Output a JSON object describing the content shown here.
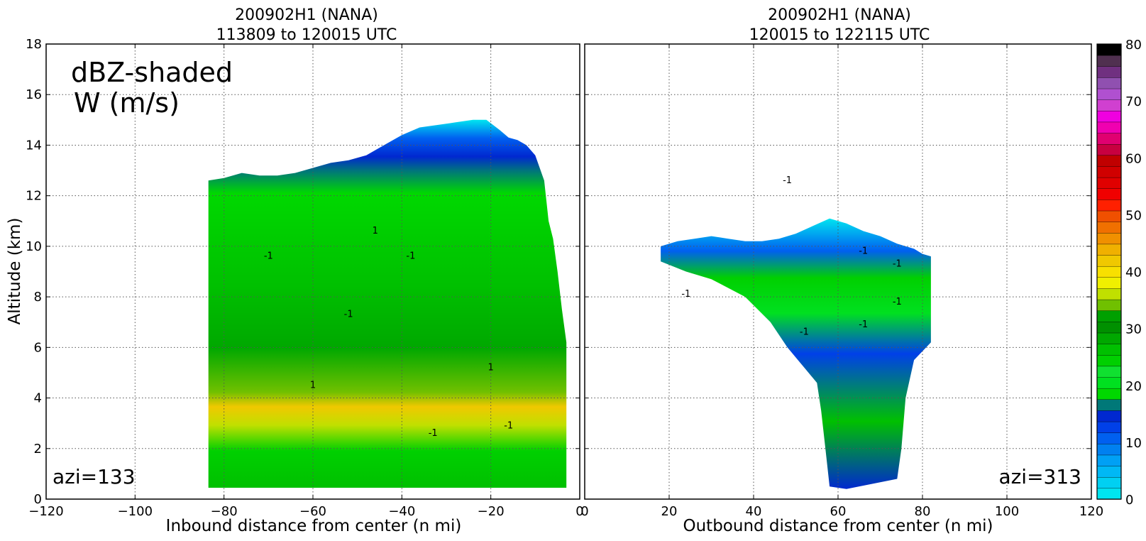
{
  "chart_data": [
    {
      "type": "heatmap",
      "title_line1": "200902H1 (NANA)",
      "title_line2": "113809 to 120015 UTC",
      "xlabel": "Inbound distance from center (n mi)",
      "ylabel": "Altitude (km)",
      "xlim": [
        -120,
        0
      ],
      "ylim": [
        0,
        18
      ],
      "xticks": [
        "−120",
        "−100",
        "−80",
        "−60",
        "−40",
        "−20",
        "0"
      ],
      "yticks": [
        "0",
        "2",
        "4",
        "6",
        "8",
        "10",
        "12",
        "14",
        "16",
        "18"
      ],
      "grid": true,
      "annotation_main": "dBZ-shaded",
      "annotation_sub": "W (m/s)",
      "corner_label": "azi=133",
      "contour_labels": [
        "1",
        "-1"
      ],
      "profile_top_km": [
        [
          -83.5,
          12.6
        ],
        [
          -80,
          12.7
        ],
        [
          -76,
          12.9
        ],
        [
          -72,
          12.8
        ],
        [
          -68,
          12.8
        ],
        [
          -64,
          12.9
        ],
        [
          -60,
          13.1
        ],
        [
          -56,
          13.3
        ],
        [
          -52,
          13.4
        ],
        [
          -48,
          13.6
        ],
        [
          -44,
          14.0
        ],
        [
          -40,
          14.4
        ],
        [
          -36,
          14.7
        ],
        [
          -32,
          14.8
        ],
        [
          -28,
          14.9
        ],
        [
          -24,
          15.0
        ],
        [
          -21,
          15.0
        ],
        [
          -18,
          14.6
        ],
        [
          -16,
          14.3
        ],
        [
          -14,
          14.2
        ],
        [
          -12,
          14.0
        ],
        [
          -10,
          13.6
        ],
        [
          -8,
          12.6
        ],
        [
          -7,
          11.0
        ],
        [
          -6,
          10.3
        ],
        [
          -5,
          9.0
        ],
        [
          -4,
          7.5
        ],
        [
          -3,
          6.2
        ]
      ],
      "profile_base_km": [
        [
          -83.5,
          0.45
        ],
        [
          -3,
          0.45
        ]
      ]
    },
    {
      "type": "heatmap",
      "title_line1": "200902H1 (NANA)",
      "title_line2": "120015 to 122115 UTC",
      "xlabel": "Outbound distance from center (n mi)",
      "xlim": [
        0,
        120
      ],
      "ylim": [
        0,
        18
      ],
      "xticks": [
        "0",
        "20",
        "40",
        "60",
        "80",
        "100",
        "120"
      ],
      "grid": true,
      "corner_label": "azi=313",
      "contour_labels": [
        "-1"
      ],
      "profile_top_km": [
        [
          18,
          10.0
        ],
        [
          22,
          10.2
        ],
        [
          26,
          10.3
        ],
        [
          30,
          10.4
        ],
        [
          34,
          10.3
        ],
        [
          38,
          10.2
        ],
        [
          42,
          10.2
        ],
        [
          46,
          10.3
        ],
        [
          50,
          10.5
        ],
        [
          54,
          10.8
        ],
        [
          58,
          11.1
        ],
        [
          62,
          10.9
        ],
        [
          66,
          10.6
        ],
        [
          70,
          10.4
        ],
        [
          74,
          10.1
        ],
        [
          78,
          9.9
        ],
        [
          80,
          9.7
        ],
        [
          82,
          9.6
        ],
        [
          82,
          6.2
        ]
      ],
      "profile_bottom_km": [
        [
          82,
          6.2
        ],
        [
          78,
          5.5
        ],
        [
          76,
          4.0
        ],
        [
          75,
          2.0
        ],
        [
          74,
          0.8
        ],
        [
          62,
          0.4
        ],
        [
          58,
          0.5
        ],
        [
          57,
          2.0
        ],
        [
          56,
          3.5
        ],
        [
          55,
          4.6
        ],
        [
          52,
          5.2
        ],
        [
          48,
          6.0
        ],
        [
          44,
          7.0
        ],
        [
          38,
          8.0
        ],
        [
          30,
          8.7
        ],
        [
          24,
          9.0
        ],
        [
          18,
          9.4
        ]
      ]
    }
  ],
  "colorbar": {
    "ticks": [
      "0",
      "10",
      "20",
      "30",
      "40",
      "50",
      "60",
      "70",
      "80"
    ],
    "vmin": 0,
    "vmax": 80,
    "step": 2.5,
    "colors": [
      "#00e5f0",
      "#00d0f2",
      "#00b8f5",
      "#00a0f5",
      "#0080f0",
      "#0060f0",
      "#0040e8",
      "#0028d0",
      "#007878",
      "#00d800",
      "#00e020",
      "#10e030",
      "#00d000",
      "#00c000",
      "#00a800",
      "#009000",
      "#00a000",
      "#70c000",
      "#c0e000",
      "#f0f000",
      "#f8e000",
      "#f0c800",
      "#f0b000",
      "#f09000",
      "#f07000",
      "#f05000",
      "#ff2000",
      "#f00000",
      "#e00000",
      "#d00000",
      "#c00000",
      "#c80040",
      "#e00070",
      "#f000b0",
      "#f000e0",
      "#d040d0",
      "#b050d0",
      "#9050b0",
      "#703080",
      "#503050",
      "#000000"
    ]
  }
}
